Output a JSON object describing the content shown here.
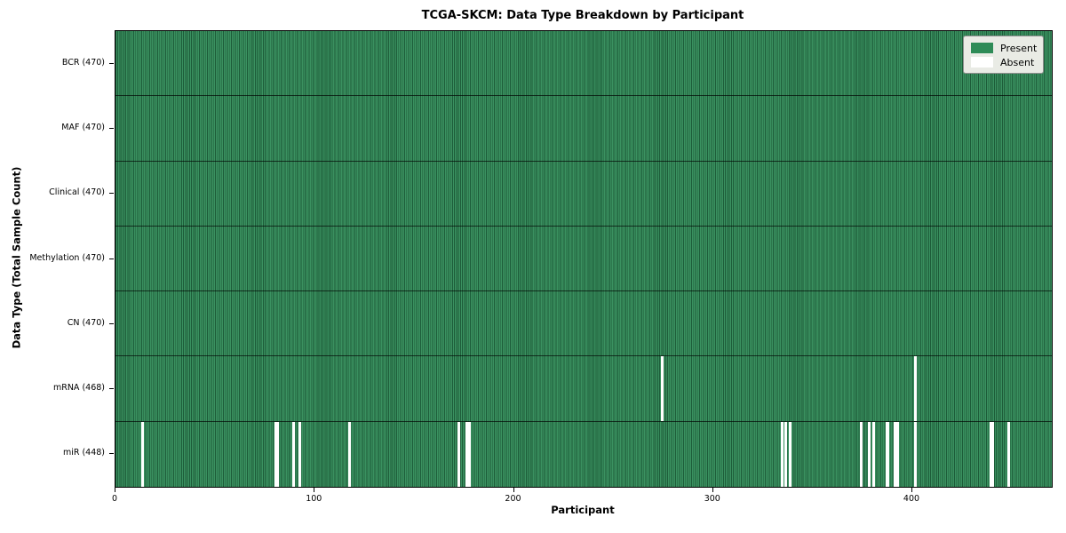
{
  "colors": {
    "present_fill": "#3a9160",
    "present_edge": "#1d5c39",
    "present_legend": "#2e8b57",
    "absent": "#ffffff",
    "row_divider": "rgba(0,0,0,0.65)",
    "legend_bg": "#e9ebe5",
    "legend_border": "#8f8f8f"
  },
  "chart_data": {
    "type": "heatmap",
    "title": "TCGA-SKCM: Data Type Breakdown by Participant",
    "xlabel": "Participant",
    "ylabel": "Data Type (Total Sample Count)",
    "x_range": [
      0,
      470
    ],
    "x_ticks": [
      "0",
      "100",
      "200",
      "300",
      "400"
    ],
    "x_tick_values": [
      0,
      100,
      200,
      300,
      400
    ],
    "grid": false,
    "legend_position": "upper right",
    "legend": [
      {
        "label": "Present",
        "color": "#2e8b57"
      },
      {
        "label": "Absent",
        "color": "#ffffff"
      }
    ],
    "rows": [
      {
        "data_type": "BCR",
        "label": "BCR (470)",
        "total": 470,
        "absent_participants": []
      },
      {
        "data_type": "MAF",
        "label": "MAF (470)",
        "total": 470,
        "absent_participants": []
      },
      {
        "data_type": "Clinical",
        "label": "Clinical (470)",
        "total": 470,
        "absent_participants": []
      },
      {
        "data_type": "Methylation",
        "label": "Methylation (470)",
        "total": 470,
        "absent_participants": []
      },
      {
        "data_type": "CN",
        "label": "CN (470)",
        "total": 470,
        "absent_participants": []
      },
      {
        "data_type": "mRNA",
        "label": "mRNA (468)",
        "total": 468,
        "absent_participants": [
          274,
          401
        ]
      },
      {
        "data_type": "miR",
        "label": "miR (448)",
        "total": 448,
        "absent_participants": [
          13,
          80,
          81,
          89,
          92,
          117,
          172,
          176,
          177,
          334,
          336,
          338,
          374,
          378,
          380,
          387,
          391,
          392,
          401,
          439,
          440,
          448
        ]
      }
    ]
  }
}
